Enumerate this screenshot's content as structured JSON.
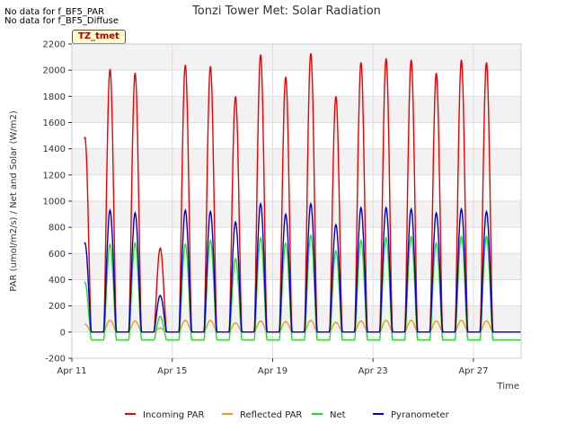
{
  "notes": [
    "No data for f_BF5_PAR",
    "No data for f_BF5_Diffuse"
  ],
  "badge": "TZ_tmet",
  "chart_data": {
    "type": "line",
    "title": "Tonzi Tower Met: Solar Radiation",
    "xlabel": "Time",
    "ylabel": "PAR (umol/m2/s) / Net and Solar (W/m2)",
    "ylim": [
      -200,
      2200
    ],
    "yticks": [
      -200,
      0,
      200,
      400,
      600,
      800,
      1000,
      1200,
      1400,
      1600,
      1800,
      2000,
      2200
    ],
    "xlim": [
      "2024-04-11",
      "2024-04-28.9"
    ],
    "xticks": [
      {
        "date": "2024-04-11",
        "label": "Apr 11"
      },
      {
        "date": "2024-04-15",
        "label": "Apr 15"
      },
      {
        "date": "2024-04-19",
        "label": "Apr 19"
      },
      {
        "date": "2024-04-23",
        "label": "Apr 23"
      },
      {
        "date": "2024-04-27",
        "label": "Apr 27"
      }
    ],
    "grid": true,
    "legend_position": "bottom",
    "days": [
      "Apr 11",
      "Apr 12",
      "Apr 13",
      "Apr 14",
      "Apr 15",
      "Apr 16",
      "Apr 17",
      "Apr 18",
      "Apr 19",
      "Apr 20",
      "Apr 21",
      "Apr 22",
      "Apr 23",
      "Apr 24",
      "Apr 25",
      "Apr 26",
      "Apr 27",
      "Apr 28"
    ],
    "series": [
      {
        "name": "Incoming PAR",
        "color": "#ee0000",
        "daily_peak": [
          1490,
          2010,
          1980,
          640,
          2040,
          2030,
          1800,
          2120,
          1950,
          2130,
          1800,
          2060,
          2090,
          2080,
          1980,
          2080,
          2060,
          0
        ]
      },
      {
        "name": "Reflected PAR",
        "color": "#f0a000",
        "daily_peak": [
          60,
          90,
          85,
          30,
          90,
          90,
          70,
          85,
          80,
          90,
          75,
          85,
          90,
          90,
          85,
          90,
          85,
          0
        ]
      },
      {
        "name": "Net",
        "color": "#22dd22",
        "daily_peak": [
          380,
          670,
          680,
          120,
          670,
          700,
          560,
          720,
          680,
          740,
          620,
          700,
          720,
          730,
          680,
          730,
          730,
          0
        ],
        "night_value": -60
      },
      {
        "name": "Pyranometer",
        "color": "#0000cc",
        "daily_peak": [
          680,
          930,
          910,
          280,
          930,
          920,
          840,
          980,
          900,
          980,
          820,
          950,
          950,
          940,
          910,
          940,
          920,
          0
        ]
      }
    ]
  }
}
